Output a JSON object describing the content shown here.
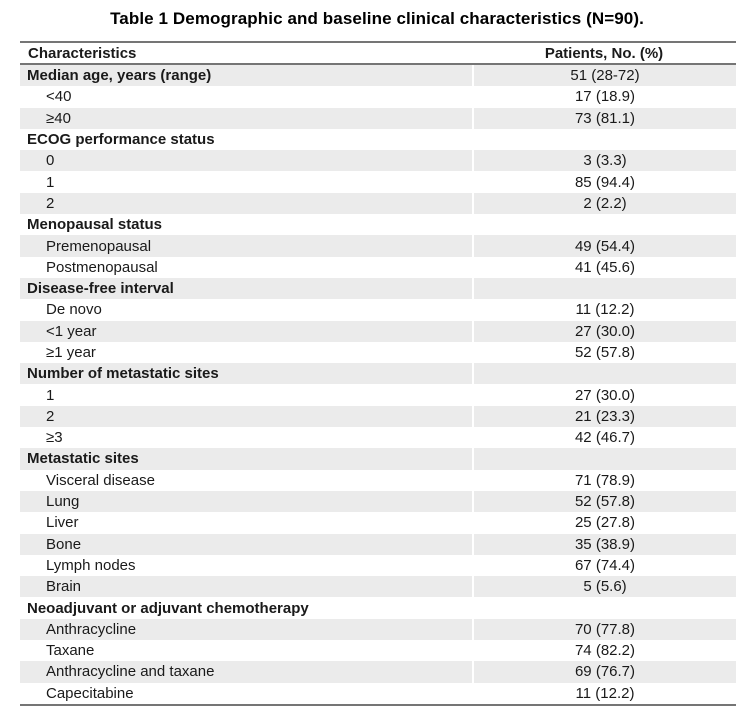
{
  "title": "Table 1 Demographic and baseline clinical characteristics (N=90).",
  "table": {
    "columns": {
      "characteristics": "Characteristics",
      "patients": "Patients, No. (%)"
    },
    "colors": {
      "shaded_row": "#ebebeb",
      "rule": "#757575",
      "text": "#1a1a1a"
    },
    "rows": [
      {
        "label": "Median age, years (range)",
        "value": "51 (28-72)",
        "group": true
      },
      {
        "label": "<40",
        "value": "17 (18.9)",
        "group": false
      },
      {
        "label": "≥40",
        "value": "73 (81.1)",
        "group": false
      },
      {
        "label": "ECOG performance status",
        "value": "",
        "group": true
      },
      {
        "label": "0",
        "value": "3 (3.3)",
        "group": false
      },
      {
        "label": "1",
        "value": "85 (94.4)",
        "group": false
      },
      {
        "label": "2",
        "value": "2 (2.2)",
        "group": false
      },
      {
        "label": "Menopausal status",
        "value": "",
        "group": true
      },
      {
        "label": "Premenopausal",
        "value": "49 (54.4)",
        "group": false
      },
      {
        "label": "Postmenopausal",
        "value": "41 (45.6)",
        "group": false
      },
      {
        "label": "Disease-free interval",
        "value": "",
        "group": true
      },
      {
        "label": "De novo",
        "value": "11 (12.2)",
        "group": false
      },
      {
        "label": "<1 year",
        "value": "27 (30.0)",
        "group": false
      },
      {
        "label": "≥1 year",
        "value": "52 (57.8)",
        "group": false
      },
      {
        "label": "Number of metastatic sites",
        "value": "",
        "group": true
      },
      {
        "label": "1",
        "value": "27 (30.0)",
        "group": false
      },
      {
        "label": "2",
        "value": "21 (23.3)",
        "group": false
      },
      {
        "label": "≥3",
        "value": "42 (46.7)",
        "group": false
      },
      {
        "label": "Metastatic sites",
        "value": "",
        "group": true
      },
      {
        "label": "Visceral disease",
        "value": "71 (78.9)",
        "group": false
      },
      {
        "label": "Lung",
        "value": "52 (57.8)",
        "group": false
      },
      {
        "label": "Liver",
        "value": "25 (27.8)",
        "group": false
      },
      {
        "label": "Bone",
        "value": "35 (38.9)",
        "group": false
      },
      {
        "label": "Lymph nodes",
        "value": "67 (74.4)",
        "group": false
      },
      {
        "label": "Brain",
        "value": "5 (5.6)",
        "group": false
      },
      {
        "label": "Neoadjuvant or adjuvant chemotherapy",
        "value": "",
        "group": true
      },
      {
        "label": "Anthracycline",
        "value": "70 (77.8)",
        "group": false
      },
      {
        "label": "Taxane",
        "value": "74 (82.2)",
        "group": false
      },
      {
        "label": "Anthracycline and taxane",
        "value": "69 (76.7)",
        "group": false
      },
      {
        "label": "Capecitabine",
        "value": "11 (12.2)",
        "group": false
      }
    ]
  }
}
